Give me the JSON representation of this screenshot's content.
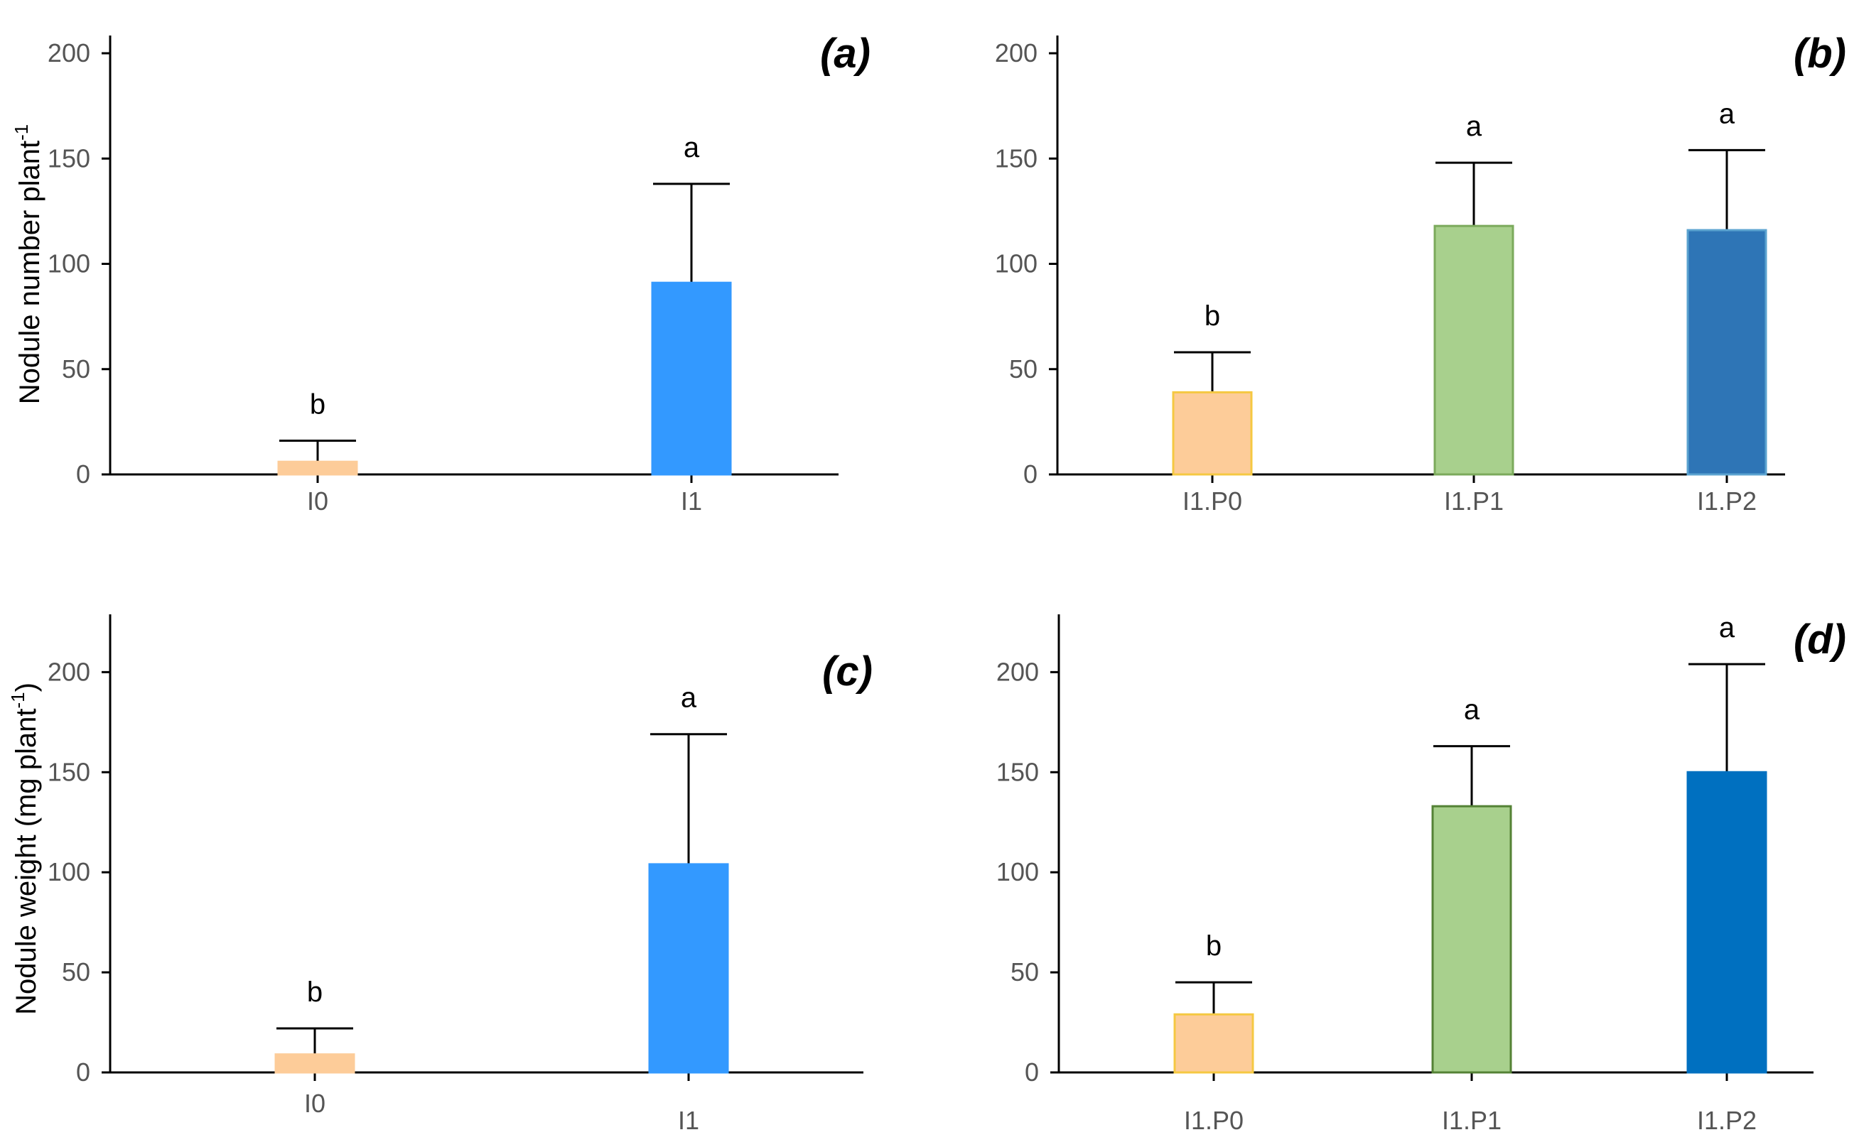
{
  "chart_data": [
    {
      "type": "bar",
      "panel_label": "(a)",
      "ylabel_main": "Nodule number plant",
      "ylabel_sup": "-1",
      "ylabel_tail": "",
      "ylim": [
        0,
        200
      ],
      "yticks": [
        0,
        50,
        100,
        150,
        200
      ],
      "categories": [
        "I0",
        "I1"
      ],
      "values": [
        6,
        91
      ],
      "errors": [
        10,
        47
      ],
      "significance": [
        "b",
        "a"
      ],
      "colors": [
        "#FDCC99",
        "#3399FF"
      ],
      "edge_colors": [
        "#FDCC99",
        "#3399FF"
      ]
    },
    {
      "type": "bar",
      "panel_label": "(b)",
      "ylabel_main": "",
      "ylabel_sup": "",
      "ylabel_tail": "",
      "ylim": [
        0,
        200
      ],
      "yticks": [
        0,
        50,
        100,
        150,
        200
      ],
      "categories": [
        "I1.P0",
        "I1.P1",
        "I1.P2"
      ],
      "values": [
        39,
        118,
        116
      ],
      "errors": [
        19,
        30,
        38
      ],
      "significance": [
        "b",
        "a",
        "a"
      ],
      "colors": [
        "#FDCC99",
        "#A8D08D",
        "#2E75B6"
      ],
      "edge_colors": [
        "#F5C842",
        "#7BAA5C",
        "#5BA3D0"
      ]
    },
    {
      "type": "bar",
      "panel_label": "(c)",
      "ylabel_main": "Nodule weight (mg plant",
      "ylabel_sup": "-1",
      "ylabel_tail": ")",
      "ylim": [
        0,
        220
      ],
      "yticks": [
        0,
        50,
        100,
        150,
        200
      ],
      "categories": [
        "I0",
        "I1"
      ],
      "values": [
        9,
        104
      ],
      "errors": [
        13,
        65
      ],
      "significance": [
        "b",
        "a"
      ],
      "colors": [
        "#FDCC99",
        "#3399FF"
      ],
      "edge_colors": [
        "#FDCC99",
        "#3399FF"
      ]
    },
    {
      "type": "bar",
      "panel_label": "(d)",
      "ylabel_main": "",
      "ylabel_sup": "",
      "ylabel_tail": "",
      "ylim": [
        0,
        220
      ],
      "yticks": [
        0,
        50,
        100,
        150,
        200
      ],
      "categories": [
        "I1.P0",
        "I1.P1",
        "I1.P2"
      ],
      "values": [
        29,
        133,
        150
      ],
      "errors": [
        16,
        30,
        54
      ],
      "significance": [
        "b",
        "a",
        "a"
      ],
      "colors": [
        "#FDCC99",
        "#A8D08D",
        "#0070C0"
      ],
      "edge_colors": [
        "#F5C842",
        "#548235",
        "#0070C0"
      ]
    }
  ]
}
